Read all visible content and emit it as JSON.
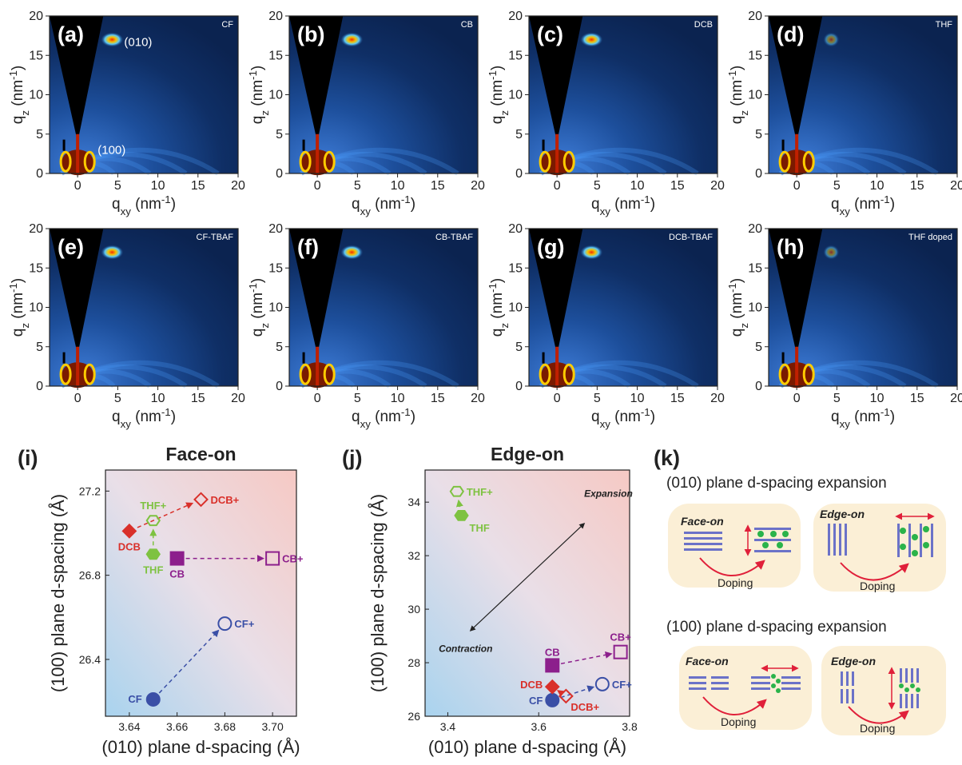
{
  "giwaxs": {
    "xlabel": "q",
    "xlabel_sub": "xy",
    "xlabel_unit": " (nm",
    "xlabel_sup": "-1",
    "ylabel": "q",
    "ylabel_sub": "z",
    "ylabel_unit": " (nm",
    "ylabel_sup": "-1",
    "x_ticks": [
      "0",
      "5",
      "10",
      "15",
      "20"
    ],
    "y_ticks": [
      "0",
      "5",
      "10",
      "15",
      "20"
    ],
    "peak_labels": {
      "p010": "(010)",
      "p100": "(100)"
    },
    "panels": [
      {
        "letter": "(a)",
        "tag": "CF"
      },
      {
        "letter": "(b)",
        "tag": "CB"
      },
      {
        "letter": "(c)",
        "tag": "DCB"
      },
      {
        "letter": "(d)",
        "tag": "THF"
      },
      {
        "letter": "(e)",
        "tag": "CF-TBAF"
      },
      {
        "letter": "(f)",
        "tag": "CB-TBAF"
      },
      {
        "letter": "(g)",
        "tag": "DCB-TBAF"
      },
      {
        "letter": "(h)",
        "tag": "THF doped"
      }
    ]
  },
  "panel_i": {
    "letter": "(i)",
    "title": "Face-on"
  },
  "panel_j": {
    "letter": "(j)",
    "title": "Edge-on",
    "expansion": "Expansion",
    "contraction": "Contraction"
  },
  "panel_k": {
    "letter": "(k)",
    "heading_010": "(010) plane d-spacing expansion",
    "heading_100": "(100) plane d-spacing expansion",
    "face_on": "Face-on",
    "edge_on": "Edge-on",
    "doping": "Doping"
  },
  "chart_data": [
    {
      "type": "scatter",
      "title": "Face-on",
      "xlabel": "(010) plane d-spacing (Å)",
      "ylabel": "(100) plane d-spacing (Å)",
      "xlim": [
        3.63,
        3.71
      ],
      "ylim": [
        26.13,
        27.3
      ],
      "x_ticks": [
        "3.64",
        "3.66",
        "3.68",
        "3.70"
      ],
      "y_ticks": [
        "26.4",
        "26.8",
        "27.2"
      ],
      "points": [
        {
          "name": "CF",
          "x": 3.65,
          "y": 26.21,
          "marker": "circle",
          "filled": true,
          "color": "#3a4fa6"
        },
        {
          "name": "CF+",
          "x": 3.68,
          "y": 26.57,
          "marker": "circle",
          "filled": false,
          "color": "#3a4fa6"
        },
        {
          "name": "CB",
          "x": 3.66,
          "y": 26.88,
          "marker": "square",
          "filled": true,
          "color": "#8c1f8c"
        },
        {
          "name": "CB+",
          "x": 3.7,
          "y": 26.88,
          "marker": "square",
          "filled": false,
          "color": "#8c1f8c"
        },
        {
          "name": "DCB",
          "x": 3.64,
          "y": 27.01,
          "marker": "diamond",
          "filled": true,
          "color": "#d9302a"
        },
        {
          "name": "DCB+",
          "x": 3.67,
          "y": 27.16,
          "marker": "diamond",
          "filled": false,
          "color": "#d9302a"
        },
        {
          "name": "THF",
          "x": 3.65,
          "y": 26.9,
          "marker": "hexagon",
          "filled": true,
          "color": "#7ec241"
        },
        {
          "name": "THF+",
          "x": 3.65,
          "y": 27.06,
          "marker": "hexagon",
          "filled": false,
          "color": "#7ec241"
        }
      ]
    },
    {
      "type": "scatter",
      "title": "Edge-on",
      "xlabel": "(010) plane d-spacing (Å)",
      "ylabel": "(100) plane d-spacing (Å)",
      "xlim": [
        3.35,
        3.8
      ],
      "ylim": [
        26,
        35.2
      ],
      "x_ticks": [
        "3.4",
        "3.6",
        "3.8"
      ],
      "y_ticks": [
        "26",
        "28",
        "30",
        "32",
        "34"
      ],
      "points": [
        {
          "name": "CF",
          "x": 3.63,
          "y": 26.6,
          "marker": "circle",
          "filled": true,
          "color": "#3a4fa6"
        },
        {
          "name": "CF+",
          "x": 3.74,
          "y": 27.2,
          "marker": "circle",
          "filled": false,
          "color": "#3a4fa6"
        },
        {
          "name": "CB",
          "x": 3.63,
          "y": 27.9,
          "marker": "square",
          "filled": true,
          "color": "#8c1f8c"
        },
        {
          "name": "CB+",
          "x": 3.78,
          "y": 28.4,
          "marker": "square",
          "filled": false,
          "color": "#8c1f8c"
        },
        {
          "name": "DCB",
          "x": 3.63,
          "y": 27.1,
          "marker": "diamond",
          "filled": true,
          "color": "#d9302a"
        },
        {
          "name": "DCB+",
          "x": 3.66,
          "y": 26.75,
          "marker": "diamond",
          "filled": false,
          "color": "#d9302a"
        },
        {
          "name": "THF",
          "x": 3.43,
          "y": 33.5,
          "marker": "hexagon",
          "filled": true,
          "color": "#7ec241"
        },
        {
          "name": "THF+",
          "x": 3.42,
          "y": 34.4,
          "marker": "hexagon",
          "filled": false,
          "color": "#7ec241"
        }
      ]
    }
  ]
}
